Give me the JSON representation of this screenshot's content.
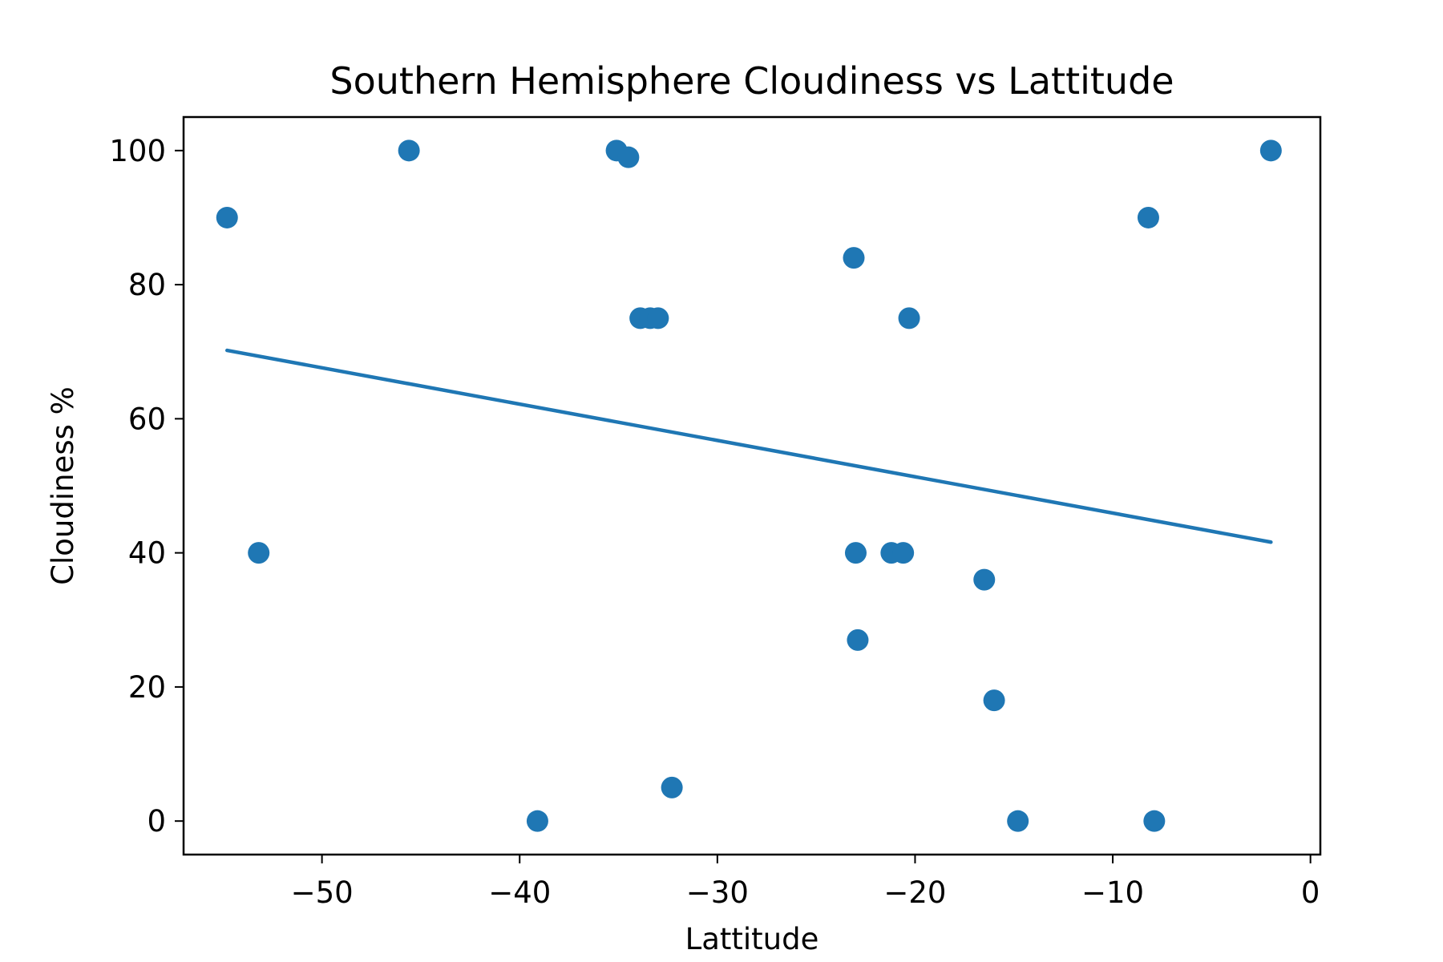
{
  "chart_data": {
    "type": "scatter",
    "title": "Southern Hemisphere Cloudiness vs Lattitude",
    "xlabel": "Lattitude",
    "ylabel": "Cloudiness %",
    "xlim": [
      -57,
      0.5
    ],
    "ylim": [
      -5,
      105
    ],
    "x_ticks": [
      -50,
      -40,
      -30,
      -20,
      -10,
      0
    ],
    "x_tick_labels": [
      "−50",
      "−40",
      "−30",
      "−20",
      "−10",
      "0"
    ],
    "y_ticks": [
      0,
      20,
      40,
      60,
      80,
      100
    ],
    "y_tick_labels": [
      "0",
      "20",
      "40",
      "60",
      "80",
      "100"
    ],
    "grid": false,
    "color": "#1f77b4",
    "points": [
      {
        "x": -54.8,
        "y": 90
      },
      {
        "x": -53.2,
        "y": 40
      },
      {
        "x": -45.6,
        "y": 100
      },
      {
        "x": -39.1,
        "y": 0
      },
      {
        "x": -35.1,
        "y": 100
      },
      {
        "x": -34.5,
        "y": 99
      },
      {
        "x": -33.9,
        "y": 75
      },
      {
        "x": -33.4,
        "y": 75
      },
      {
        "x": -33.0,
        "y": 75
      },
      {
        "x": -32.3,
        "y": 5
      },
      {
        "x": -23.1,
        "y": 84
      },
      {
        "x": -23.0,
        "y": 40
      },
      {
        "x": -22.9,
        "y": 27
      },
      {
        "x": -21.2,
        "y": 40
      },
      {
        "x": -20.6,
        "y": 40
      },
      {
        "x": -20.3,
        "y": 75
      },
      {
        "x": -16.5,
        "y": 36
      },
      {
        "x": -16.0,
        "y": 18
      },
      {
        "x": -14.8,
        "y": 0
      },
      {
        "x": -8.2,
        "y": 90
      },
      {
        "x": -7.9,
        "y": 0
      },
      {
        "x": -2.0,
        "y": 100
      }
    ],
    "regression_line": {
      "x": [
        -54.8,
        -2.0
      ],
      "y": [
        70.2,
        41.6
      ]
    }
  }
}
